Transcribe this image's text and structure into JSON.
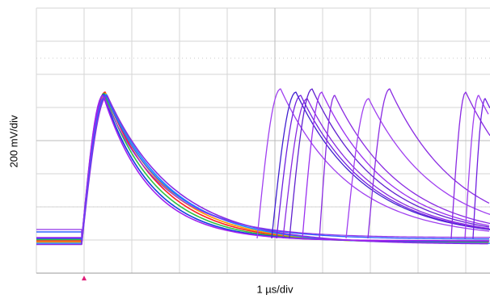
{
  "chart_data": {
    "type": "oscilloscope",
    "x_label": "1 µs/div",
    "y_label": "200 mV/div"
  }
}
